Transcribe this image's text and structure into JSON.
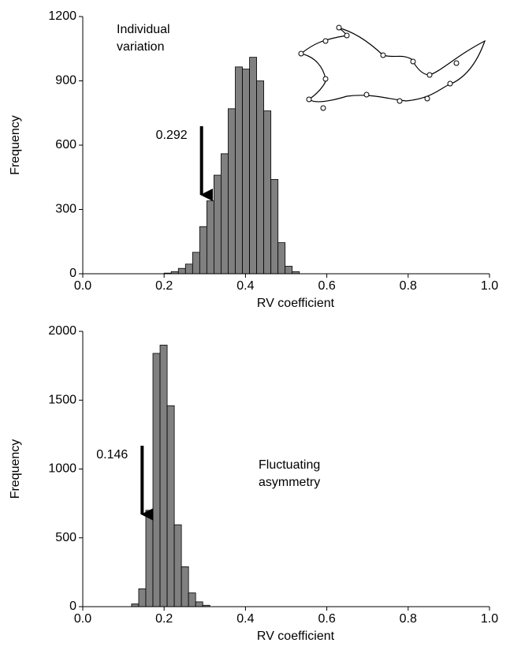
{
  "chart_data": [
    {
      "type": "histogram",
      "xlabel": "RV coefficient",
      "ylabel": "Frequency",
      "color": "#808080",
      "annotation": [
        "Individual",
        "variation"
      ],
      "marker": {
        "text": "0.292",
        "x": 0.292
      },
      "bins": [
        0.2,
        0.2175,
        0.235,
        0.2525,
        0.27,
        0.2875,
        0.305,
        0.3225,
        0.34,
        0.3575,
        0.375,
        0.3925,
        0.41,
        0.4275,
        0.445,
        0.4625,
        0.48,
        0.4975,
        0.515,
        0.5325
      ],
      "values": [
        3,
        10,
        25,
        45,
        100,
        220,
        340,
        460,
        560,
        770,
        965,
        955,
        1010,
        900,
        760,
        440,
        145,
        35,
        10
      ],
      "xlim": [
        0,
        1
      ],
      "xticks": [
        {
          "value": 0,
          "label": "0.0"
        },
        {
          "value": 0.2,
          "label": "0.2"
        },
        {
          "value": 0.4,
          "label": "0.4"
        },
        {
          "value": 0.6,
          "label": "0.6"
        },
        {
          "value": 0.8,
          "label": "0.8"
        },
        {
          "value": 1,
          "label": "1.0"
        }
      ],
      "ylim": [
        0,
        1200
      ],
      "yticks": [
        0,
        300,
        600,
        900,
        1200
      ]
    },
    {
      "type": "histogram",
      "xlabel": "RV coefficient",
      "ylabel": "Frequency",
      "color": "#808080",
      "annotation": [
        "Fluctuating",
        "asymmetry"
      ],
      "marker": {
        "text": "0.146",
        "x": 0.146
      },
      "bins": [
        0.12,
        0.1375,
        0.155,
        0.1725,
        0.19,
        0.2075,
        0.225,
        0.2425,
        0.26,
        0.2775,
        0.295,
        0.3125
      ],
      "values": [
        20,
        130,
        700,
        1840,
        1900,
        1460,
        595,
        290,
        100,
        35,
        10
      ],
      "xlim": [
        0,
        1
      ],
      "xticks": [
        {
          "value": 0,
          "label": "0.0"
        },
        {
          "value": 0.2,
          "label": "0.2"
        },
        {
          "value": 0.4,
          "label": "0.4"
        },
        {
          "value": 0.6,
          "label": "0.6"
        },
        {
          "value": 0.8,
          "label": "0.8"
        },
        {
          "value": 1,
          "label": "1.0"
        }
      ],
      "ylim": [
        0,
        2000
      ],
      "yticks": [
        0,
        500,
        1000,
        1500,
        2000
      ]
    }
  ]
}
